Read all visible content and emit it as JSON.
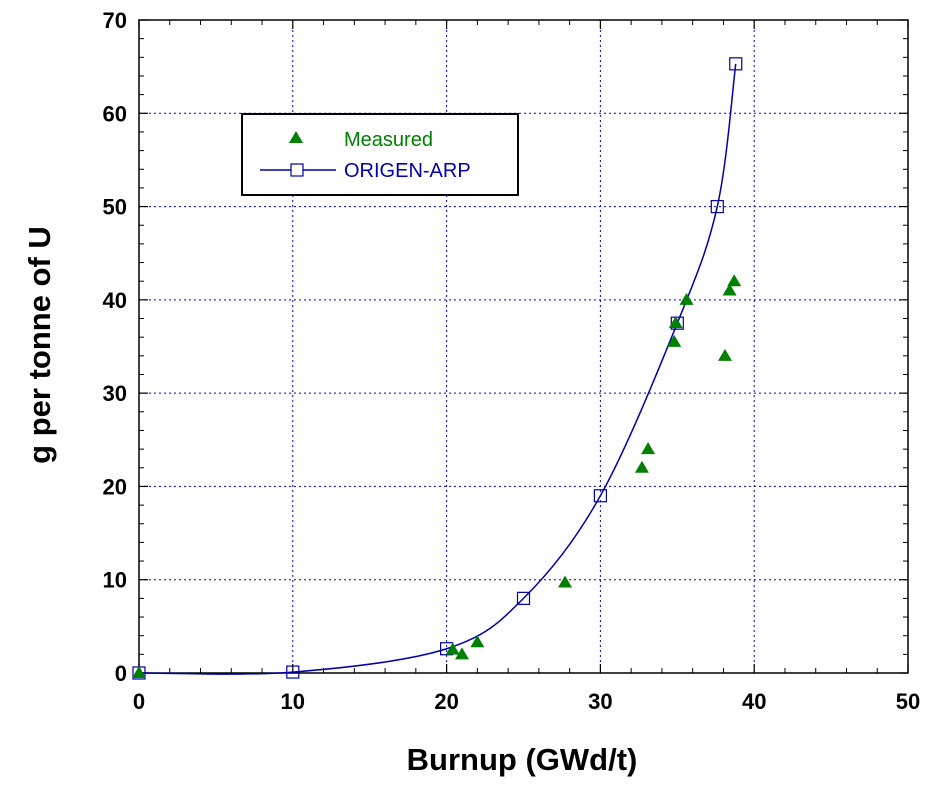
{
  "chart_data": {
    "type": "scatter",
    "title": "",
    "xlabel": "Burnup (GWd/t)",
    "ylabel": "g per tonne of U",
    "xlim": [
      0,
      50
    ],
    "ylim": [
      0,
      70
    ],
    "x_ticks": [
      0,
      10,
      20,
      30,
      40,
      50
    ],
    "y_ticks": [
      0,
      10,
      20,
      30,
      40,
      50,
      60,
      70
    ],
    "grid": true,
    "legend_position": "top-left",
    "series": [
      {
        "name": "Measured",
        "type": "scatter",
        "marker": "filled-triangle",
        "color": "#008000",
        "x": [
          0,
          20.4,
          21.0,
          22.0,
          27.7,
          32.7,
          33.1,
          34.8,
          34.9,
          35.6,
          38.1,
          38.4,
          38.7
        ],
        "y": [
          0,
          2.5,
          2.0,
          3.3,
          9.7,
          22.0,
          24.0,
          35.5,
          37.5,
          40.0,
          34.0,
          41.0,
          42.0
        ]
      },
      {
        "name": "ORIGEN-ARP",
        "type": "line",
        "marker": "open-square",
        "color": "#0000aa",
        "x": [
          0,
          10,
          20,
          25,
          30,
          35,
          37.6,
          38.8
        ],
        "y": [
          0,
          0.1,
          2.6,
          8.0,
          19.0,
          37.5,
          50.0,
          65.3
        ]
      }
    ]
  }
}
